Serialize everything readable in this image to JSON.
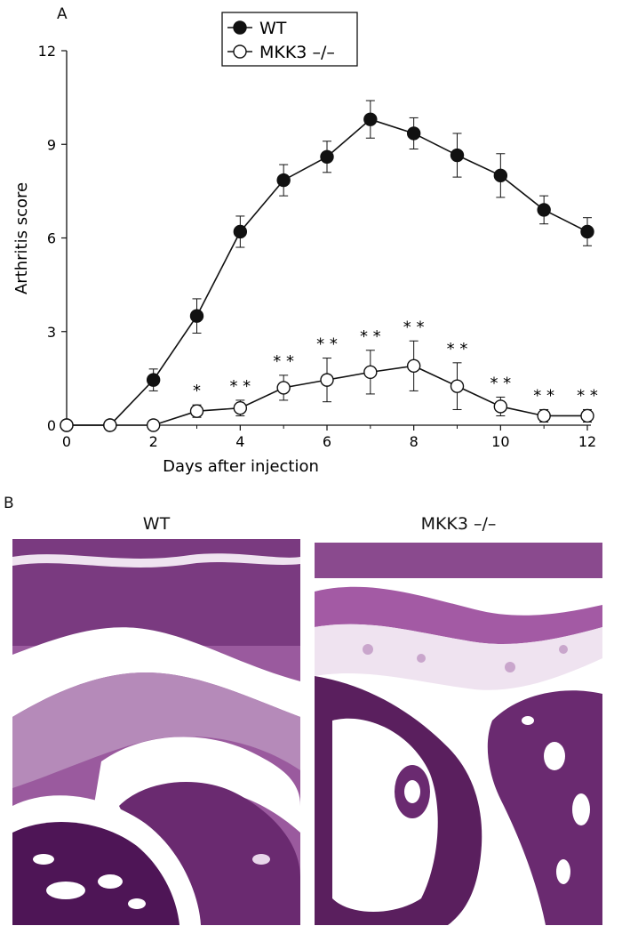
{
  "panel_a": {
    "label": "A"
  },
  "panel_b": {
    "label": "B",
    "images": [
      {
        "caption": "WT"
      },
      {
        "caption": "MKK3 –/–"
      }
    ]
  },
  "colors": {
    "wt_marker": "#111111",
    "mkk3_marker": "#ffffff",
    "stroke": "#111111",
    "tissue_dark": "#5a1f5e",
    "tissue_mid": "#8a4a8e",
    "tissue_light": "#b98fbe",
    "cartilage": "#c9a6cc",
    "space": "#ffffff"
  },
  "chart_data": {
    "type": "line",
    "xlabel": "Days after injection",
    "ylabel": "Arthritis score",
    "xlim": [
      0,
      12
    ],
    "ylim": [
      0,
      12
    ],
    "xticks": [
      0,
      2,
      4,
      6,
      8,
      10,
      12
    ],
    "yticks": [
      0,
      3,
      6,
      9,
      12
    ],
    "legend_placement": "top-center",
    "grid": false,
    "series": [
      {
        "name": "WT",
        "marker": "filled-circle",
        "x": [
          0,
          1,
          2,
          3,
          4,
          5,
          6,
          7,
          8,
          9,
          10,
          11,
          12
        ],
        "y": [
          0,
          0,
          1.45,
          3.5,
          6.2,
          7.85,
          8.6,
          9.8,
          9.35,
          8.65,
          8.0,
          6.9,
          6.2
        ],
        "err": [
          0,
          0,
          0.35,
          0.55,
          0.5,
          0.5,
          0.5,
          0.6,
          0.5,
          0.7,
          0.7,
          0.45,
          0.45
        ]
      },
      {
        "name": "MKK3 –/–",
        "marker": "open-circle",
        "x": [
          0,
          1,
          2,
          3,
          4,
          5,
          6,
          7,
          8,
          9,
          10,
          11,
          12
        ],
        "y": [
          0,
          0,
          0,
          0.45,
          0.55,
          1.2,
          1.45,
          1.7,
          1.9,
          1.25,
          0.6,
          0.3,
          0.3
        ],
        "err": [
          0,
          0,
          0,
          0.2,
          0.25,
          0.4,
          0.7,
          0.7,
          0.8,
          0.75,
          0.3,
          0.2,
          0.2
        ],
        "significance": [
          "",
          "",
          "",
          "*",
          "* *",
          "* *",
          "* *",
          "* *",
          "* *",
          "* *",
          "* *",
          "* *",
          "* *"
        ]
      }
    ]
  }
}
